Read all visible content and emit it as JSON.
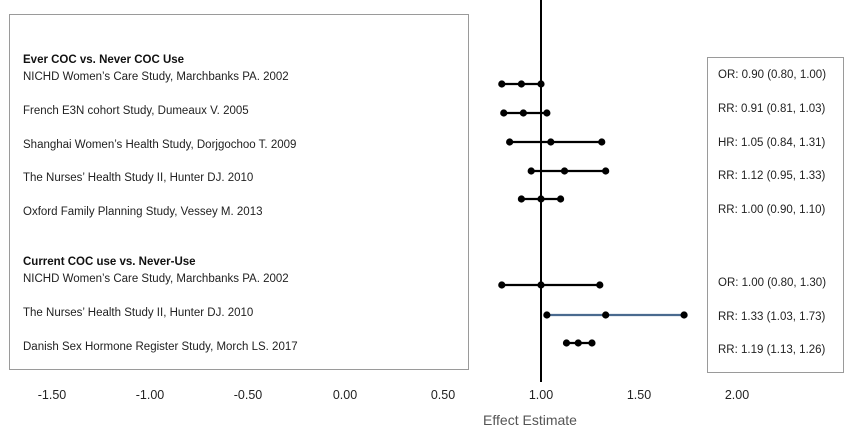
{
  "chart_data": {
    "type": "forest",
    "xlabel": "Effect Estimate",
    "xlim": [
      -1.5,
      2.0
    ],
    "xticks": [
      "-1.50",
      "-1.00",
      "-0.50",
      "0.00",
      "0.50",
      "1.00",
      "1.50",
      "2.00"
    ],
    "reference_line": 1.0,
    "groups": [
      {
        "header": "Ever COC vs. Never COC Use",
        "studies": [
          {
            "name": "NICHD Women’s Care Study, Marchbanks PA. 2002",
            "point": 0.9,
            "lower": 0.8,
            "upper": 1.0,
            "label": "OR: 0.90 (0.80, 1.00)"
          },
          {
            "name": "French E3N cohort Study, Dumeaux V. 2005",
            "point": 0.91,
            "lower": 0.81,
            "upper": 1.03,
            "label": "RR: 0.91 (0.81, 1.03)"
          },
          {
            "name": "Shanghai Women’s Health Study, Dorjgochoo T. 2009",
            "point": 1.05,
            "lower": 0.84,
            "upper": 1.31,
            "label": "HR: 1.05 (0.84, 1.31)"
          },
          {
            "name": "The Nurses’ Health Study II, Hunter DJ. 2010",
            "point": 1.12,
            "lower": 0.95,
            "upper": 1.33,
            "label": "RR: 1.12 (0.95, 1.33)"
          },
          {
            "name": "Oxford Family Planning Study, Vessey M. 2013",
            "point": 1.0,
            "lower": 0.9,
            "upper": 1.1,
            "label": "RR: 1.00 (0.90, 1.10)"
          }
        ]
      },
      {
        "header": "Current COC use vs. Never-Use",
        "studies": [
          {
            "name": "NICHD Women’s Care Study, Marchbanks PA. 2002",
            "point": 1.0,
            "lower": 0.8,
            "upper": 1.3,
            "label": "OR: 1.00 (0.80, 1.30)"
          },
          {
            "name": "The Nurses’ Health Study II, Hunter DJ. 2010",
            "point": 1.33,
            "lower": 1.03,
            "upper": 1.73,
            "label": "RR: 1.33 (1.03, 1.73)",
            "line_color": "#4a6a8f"
          },
          {
            "name": "Danish Sex Hormone Register Study, Morch LS. 2017",
            "point": 1.19,
            "lower": 1.13,
            "upper": 1.26,
            "label": "RR: 1.19 (1.13, 1.26)"
          }
        ]
      }
    ]
  }
}
